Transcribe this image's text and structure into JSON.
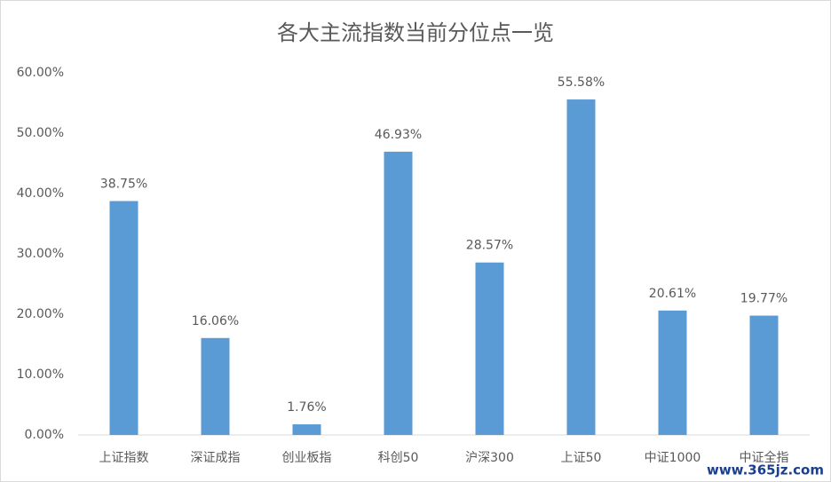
{
  "chart_data": {
    "type": "bar",
    "title": "各大主流指数当前分位点一览",
    "categories": [
      "上证指数",
      "深证成指",
      "创业板指",
      "科创50",
      "沪深300",
      "上证50",
      "中证1000",
      "中证全指"
    ],
    "values": [
      38.75,
      16.06,
      1.76,
      46.93,
      28.57,
      55.58,
      20.61,
      19.77
    ],
    "value_labels": [
      "38.75%",
      "16.06%",
      "1.76%",
      "46.93%",
      "28.57%",
      "55.58%",
      "20.61%",
      "19.77%"
    ],
    "color": "#5b9bd5",
    "ylim": [
      0,
      60
    ],
    "yticks": [
      {
        "value": 0,
        "label": "0.00%"
      },
      {
        "value": 10,
        "label": "10.00%"
      },
      {
        "value": 20,
        "label": "20.00%"
      },
      {
        "value": 30,
        "label": "30.00%"
      },
      {
        "value": 40,
        "label": "40.00%"
      },
      {
        "value": 50,
        "label": "50.00%"
      },
      {
        "value": 60,
        "label": "60.00%"
      }
    ],
    "grid": false,
    "watermark": "www.365jz.com"
  }
}
